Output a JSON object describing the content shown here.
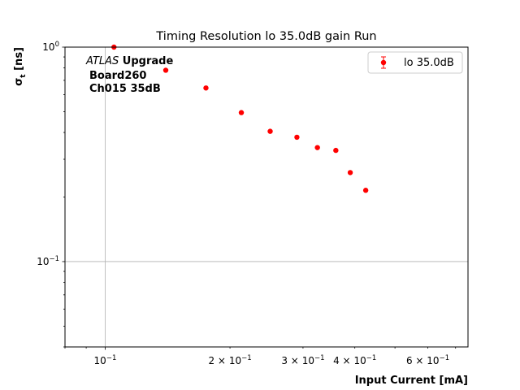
{
  "chart_data": {
    "type": "scatter",
    "title": "Timing Resolution lo 35.0dB gain Run",
    "xlabel": "Input Current [mA]",
    "ylabel": "σ",
    "ylabel_sub": "t",
    "ylabel_unit": " [ns]",
    "xscale": "log",
    "yscale": "log",
    "xlim": [
      0.08,
      0.75
    ],
    "ylim": [
      0.04,
      1.0
    ],
    "grid": "major",
    "legend_position": "top-right",
    "series": [
      {
        "name": "lo 35.0dB",
        "color": "#ff0000",
        "x": [
          0.105,
          0.14,
          0.175,
          0.213,
          0.25,
          0.29,
          0.325,
          0.36,
          0.39,
          0.425
        ],
        "y": [
          1.0,
          0.78,
          0.645,
          0.495,
          0.405,
          0.38,
          0.34,
          0.33,
          0.26,
          0.215
        ]
      }
    ],
    "x_ticks": [
      {
        "value": 0.1,
        "base": "10",
        "exp": "−1",
        "coef": ""
      },
      {
        "value": 0.2,
        "base": "10",
        "exp": "−1",
        "coef": "2 × "
      },
      {
        "value": 0.3,
        "base": "10",
        "exp": "−1",
        "coef": "3 × "
      },
      {
        "value": 0.4,
        "base": "10",
        "exp": "−1",
        "coef": "4 × "
      },
      {
        "value": 0.6,
        "base": "10",
        "exp": "−1",
        "coef": "6 × "
      }
    ],
    "y_ticks": [
      {
        "value": 1.0,
        "base": "10",
        "exp": "0"
      },
      {
        "value": 0.1,
        "base": "10",
        "exp": "−1"
      }
    ],
    "annotation": {
      "atlas": "ATLAS",
      "upgrade": " Upgrade",
      "line2": "Board260",
      "line3": "Ch015 35dB"
    }
  }
}
